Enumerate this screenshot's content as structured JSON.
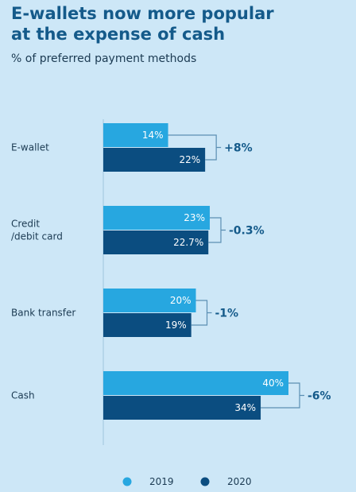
{
  "chart_data": {
    "type": "bar",
    "title_line1": "E-wallets now more popular",
    "title_line2": "at the expense of cash",
    "subtitle": "% of preferred payment methods",
    "categories": [
      [
        "E-wallet"
      ],
      [
        "Credit",
        "/debit card"
      ],
      [
        "Bank transfer"
      ],
      [
        "Cash"
      ]
    ],
    "series": [
      {
        "name": "2019",
        "color": "#27a7e0",
        "values": [
          14,
          23,
          20,
          40
        ],
        "labels": [
          "14%",
          "23%",
          "20%",
          "40%"
        ]
      },
      {
        "name": "2020",
        "color": "#0b4d80",
        "values": [
          22,
          22.7,
          19,
          34
        ],
        "labels": [
          "22%",
          "22.7%",
          "19%",
          "34%"
        ]
      }
    ],
    "differences": [
      "+8%",
      "-0.3%",
      "-1%",
      "-6%"
    ],
    "orientation": "horizontal",
    "xlim": [
      0,
      40
    ],
    "grid": false,
    "legend_position": "bottom"
  }
}
